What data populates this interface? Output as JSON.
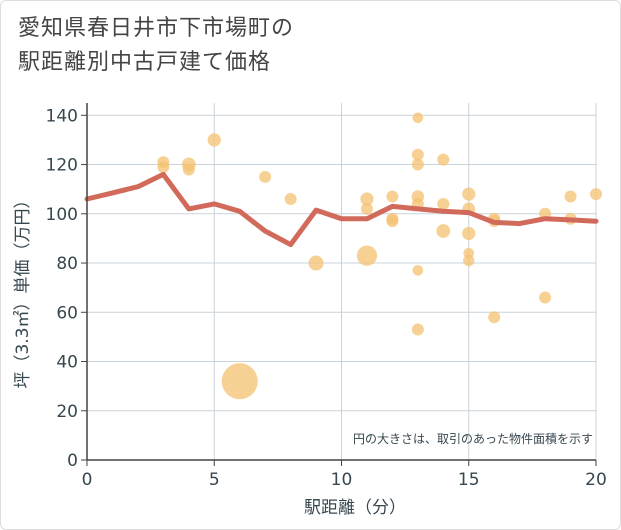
{
  "title_lines": [
    "愛知県春日井市下市場町の",
    "駅距離別中古戸建て価格"
  ],
  "colors": {
    "bubble": "#f4c170",
    "line": "#d26a5b",
    "grid": "#c9d3dc",
    "axis": "#444444",
    "text": "#37474f"
  },
  "chart_data": {
    "type": "scatter",
    "xlabel": "駅距離（分）",
    "ylabel": "坪（3.3㎡）単価（万円）",
    "xlim": [
      0,
      20
    ],
    "ylim": [
      0,
      145
    ],
    "xticks": [
      0,
      5,
      10,
      15,
      20
    ],
    "yticks": [
      0,
      20,
      40,
      60,
      80,
      100,
      120,
      140
    ],
    "xtick_labels": [
      "0",
      "5",
      "10",
      "15",
      "20"
    ],
    "ytick_labels": [
      "0",
      "20",
      "40",
      "60",
      "80",
      "100",
      "120",
      "140"
    ],
    "annotation": "円の大きさは、取引のあった物件面積を示す",
    "points": [
      {
        "x": 3,
        "y": 121,
        "s": 1
      },
      {
        "x": 3,
        "y": 119,
        "s": 1
      },
      {
        "x": 4,
        "y": 120,
        "s": 1.3
      },
      {
        "x": 4,
        "y": 118,
        "s": 1
      },
      {
        "x": 5,
        "y": 130,
        "s": 1.2
      },
      {
        "x": 6,
        "y": 32,
        "s": 7
      },
      {
        "x": 7,
        "y": 115,
        "s": 1
      },
      {
        "x": 8,
        "y": 106,
        "s": 1
      },
      {
        "x": 9,
        "y": 80,
        "s": 1.5
      },
      {
        "x": 11,
        "y": 83,
        "s": 2.6
      },
      {
        "x": 11,
        "y": 106,
        "s": 1.2
      },
      {
        "x": 11,
        "y": 102,
        "s": 1
      },
      {
        "x": 12,
        "y": 107,
        "s": 1
      },
      {
        "x": 12,
        "y": 98,
        "s": 1
      },
      {
        "x": 12,
        "y": 97,
        "s": 1
      },
      {
        "x": 13,
        "y": 139,
        "s": 0.8
      },
      {
        "x": 13,
        "y": 124,
        "s": 1
      },
      {
        "x": 13,
        "y": 120,
        "s": 1
      },
      {
        "x": 13,
        "y": 107,
        "s": 1.1
      },
      {
        "x": 13,
        "y": 104,
        "s": 1
      },
      {
        "x": 13,
        "y": 77,
        "s": 0.8
      },
      {
        "x": 13,
        "y": 53,
        "s": 1
      },
      {
        "x": 14,
        "y": 122,
        "s": 1
      },
      {
        "x": 14,
        "y": 104,
        "s": 1
      },
      {
        "x": 14,
        "y": 93,
        "s": 1.3
      },
      {
        "x": 15,
        "y": 108,
        "s": 1.2
      },
      {
        "x": 15,
        "y": 102,
        "s": 1.1
      },
      {
        "x": 15,
        "y": 92,
        "s": 1.2
      },
      {
        "x": 15,
        "y": 84,
        "s": 0.8
      },
      {
        "x": 15,
        "y": 81,
        "s": 0.9
      },
      {
        "x": 16,
        "y": 98,
        "s": 1
      },
      {
        "x": 16,
        "y": 97,
        "s": 1
      },
      {
        "x": 16,
        "y": 58,
        "s": 1
      },
      {
        "x": 18,
        "y": 100,
        "s": 1
      },
      {
        "x": 18,
        "y": 66,
        "s": 1
      },
      {
        "x": 19,
        "y": 107,
        "s": 1
      },
      {
        "x": 19,
        "y": 98,
        "s": 1
      },
      {
        "x": 20,
        "y": 108,
        "s": 1
      }
    ],
    "line": {
      "x": [
        0,
        1,
        2,
        3,
        4,
        5,
        6,
        7,
        8,
        9,
        10,
        11,
        12,
        13,
        14,
        15,
        16,
        17,
        18,
        19,
        20
      ],
      "y": [
        106,
        108.5,
        111,
        116,
        102,
        104,
        101,
        93,
        87.5,
        101.5,
        98,
        98,
        103,
        102,
        101,
        100.5,
        96.5,
        96,
        98,
        97.5,
        97
      ]
    }
  }
}
